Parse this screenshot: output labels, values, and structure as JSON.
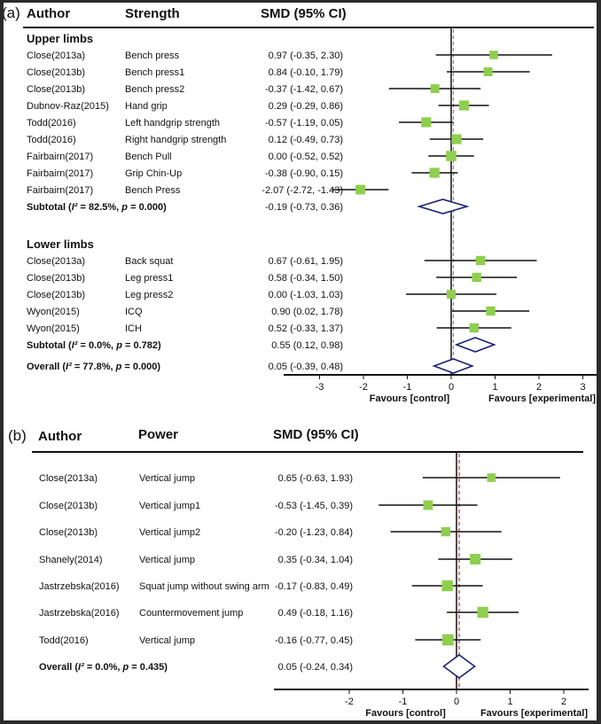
{
  "colors": {
    "marker": "#8fce4f",
    "diamond": "#1c2270",
    "line": "#111111",
    "dash_a": "#b07878",
    "dash_b": "#c0303a"
  },
  "chart_data": [
    {
      "type": "forest",
      "panel_label": "(a)",
      "headers": {
        "author": "Author",
        "outcome": "Strength",
        "effect": "SMD (95% CI)"
      },
      "xlim": [
        -3.6,
        3.3
      ],
      "ticks": [
        -3,
        -2,
        -1,
        0,
        1,
        2,
        3
      ],
      "tick_labels": [
        "-3",
        "-2",
        "-1",
        "0",
        "1",
        "2",
        "3"
      ],
      "xlabel_left": "Favours [control]",
      "xlabel_right": "Favours [experimental]",
      "overall_line": 0.05,
      "rows": [
        {
          "kind": "group",
          "label": "Upper limbs"
        },
        {
          "kind": "study",
          "author": "Close(2013a)",
          "outcome": "Bench press",
          "est": 0.97,
          "lo": -0.35,
          "hi": 2.3,
          "text": "0.97 (-0.35, 2.30)",
          "w": 0.45
        },
        {
          "kind": "study",
          "author": "Close(2013b)",
          "outcome": "Bench press1",
          "est": 0.84,
          "lo": -0.1,
          "hi": 1.79,
          "text": "0.84 (-0.10, 1.79)",
          "w": 0.5
        },
        {
          "kind": "study",
          "author": "Close(2013b)",
          "outcome": "Bench press2",
          "est": -0.37,
          "lo": -1.42,
          "hi": 0.67,
          "text": "-0.37 (-1.42, 0.67)",
          "w": 0.5
        },
        {
          "kind": "study",
          "author": "Dubnov-Raz(2015)",
          "outcome": "Hand grip",
          "est": 0.29,
          "lo": -0.29,
          "hi": 0.86,
          "text": "0.29 (-0.29, 0.86)",
          "w": 0.65
        },
        {
          "kind": "study",
          "author": "Todd(2016)",
          "outcome": "Left handgrip strength",
          "est": -0.57,
          "lo": -1.19,
          "hi": 0.05,
          "text": "-0.57 (-1.19, 0.05)",
          "w": 0.65
        },
        {
          "kind": "study",
          "author": "Todd(2016)",
          "outcome": "Right handgrip strength",
          "est": 0.12,
          "lo": -0.49,
          "hi": 0.73,
          "text": "0.12 (-0.49, 0.73)",
          "w": 0.65
        },
        {
          "kind": "study",
          "author": "Fairbairn(2017)",
          "outcome": "Bench Pull",
          "est": 0.0,
          "lo": -0.52,
          "hi": 0.52,
          "text": "0.00 (-0.52, 0.52)",
          "w": 0.7
        },
        {
          "kind": "study",
          "author": "Fairbairn(2017)",
          "outcome": "Grip Chin-Up",
          "est": -0.38,
          "lo": -0.9,
          "hi": 0.15,
          "text": "-0.38 (-0.90, 0.15)",
          "w": 0.65
        },
        {
          "kind": "study",
          "author": "Fairbairn(2017)",
          "outcome": "Bench Press",
          "est": -2.07,
          "lo": -2.72,
          "hi": -1.43,
          "text": "-2.07 (-2.72, -1.43)",
          "w": 0.6
        },
        {
          "kind": "subtotal",
          "label": "Subtotal  (I² = 82.5%, p = 0.000)",
          "est": -0.19,
          "lo": -0.73,
          "hi": 0.36,
          "text": "-0.19 (-0.73, 0.36)"
        },
        {
          "kind": "gap"
        },
        {
          "kind": "group",
          "label": "Lower limbs"
        },
        {
          "kind": "study",
          "author": "Close(2013a)",
          "outcome": "Back squat",
          "est": 0.67,
          "lo": -0.61,
          "hi": 1.95,
          "text": "0.67 (-0.61, 1.95)",
          "w": 0.55
        },
        {
          "kind": "study",
          "author": "Close(2013b)",
          "outcome": "Leg press1",
          "est": 0.58,
          "lo": -0.34,
          "hi": 1.5,
          "text": "0.58 (-0.34, 1.50)",
          "w": 0.55
        },
        {
          "kind": "study",
          "author": "Close(2013b)",
          "outcome": "Leg press2",
          "est": 0.0,
          "lo": -1.03,
          "hi": 1.03,
          "text": "0.00 (-1.03, 1.03)",
          "w": 0.5
        },
        {
          "kind": "study",
          "author": "Wyon(2015)",
          "outcome": "ICQ",
          "est": 0.9,
          "lo": 0.02,
          "hi": 1.78,
          "text": "0.90 (0.02, 1.78)",
          "w": 0.55
        },
        {
          "kind": "study",
          "author": "Wyon(2015)",
          "outcome": "ICH",
          "est": 0.52,
          "lo": -0.33,
          "hi": 1.37,
          "text": "0.52 (-0.33, 1.37)",
          "w": 0.55
        },
        {
          "kind": "subtotal",
          "label": "Subtotal  (I² = 0.0%, p = 0.782)",
          "est": 0.55,
          "lo": 0.12,
          "hi": 0.98,
          "text": "0.55 (0.12, 0.98)"
        },
        {
          "kind": "subtotal",
          "label": "Overall  (I² = 77.8%, p = 0.000)",
          "est": 0.05,
          "lo": -0.39,
          "hi": 0.48,
          "text": "0.05 (-0.39, 0.48)"
        }
      ]
    },
    {
      "type": "forest",
      "panel_label": "(b)",
      "headers": {
        "author": "Author",
        "outcome": "Power",
        "effect": "SMD (95% CI)"
      },
      "xlim": [
        -3.4,
        2.45
      ],
      "ticks": [
        -2,
        -1,
        0,
        1,
        2
      ],
      "tick_labels": [
        "-2",
        "-1",
        "0",
        "1",
        "2"
      ],
      "xlabel_left": "Favours [control]",
      "xlabel_right": "Favours [experimental]",
      "overall_line": 0.05,
      "rows": [
        {
          "kind": "study",
          "author": "Close(2013a)",
          "outcome": "Vertical jump",
          "est": 0.65,
          "lo": -0.63,
          "hi": 1.93,
          "text": "0.65 (-0.63, 1.93)",
          "w": 0.45
        },
        {
          "kind": "study",
          "author": "Close(2013b)",
          "outcome": "Vertical jump1",
          "est": -0.53,
          "lo": -1.45,
          "hi": 0.39,
          "text": "-0.53 (-1.45, 0.39)",
          "w": 0.6
        },
        {
          "kind": "study",
          "author": "Close(2013b)",
          "outcome": "Vertical jump2",
          "est": -0.2,
          "lo": -1.23,
          "hi": 0.84,
          "text": "-0.20 (-1.23, 0.84)",
          "w": 0.55
        },
        {
          "kind": "study",
          "author": "Shanely(2014)",
          "outcome": "Vertical jump",
          "est": 0.35,
          "lo": -0.34,
          "hi": 1.04,
          "text": "0.35 (-0.34, 1.04)",
          "w": 0.75
        },
        {
          "kind": "study",
          "author": "Jastrzebska(2016)",
          "outcome": "Squat jump without swing arm",
          "est": -0.17,
          "lo": -0.83,
          "hi": 0.49,
          "text": "-0.17 (-0.83, 0.49)",
          "w": 0.8
        },
        {
          "kind": "study",
          "author": "Jastrzebska(2016)",
          "outcome": "Countermovement jump",
          "est": 0.49,
          "lo": -0.18,
          "hi": 1.16,
          "text": "0.49 (-0.18, 1.16)",
          "w": 0.8
        },
        {
          "kind": "study",
          "author": "Todd(2016)",
          "outcome": "Vertical jump",
          "est": -0.16,
          "lo": -0.77,
          "hi": 0.45,
          "text": "-0.16 (-0.77, 0.45)",
          "w": 0.85
        },
        {
          "kind": "subtotal",
          "label": "Overall  (I² = 0.0%, p = 0.435)",
          "est": 0.05,
          "lo": -0.24,
          "hi": 0.34,
          "text": "0.05 (-0.24, 0.34)"
        }
      ]
    }
  ]
}
